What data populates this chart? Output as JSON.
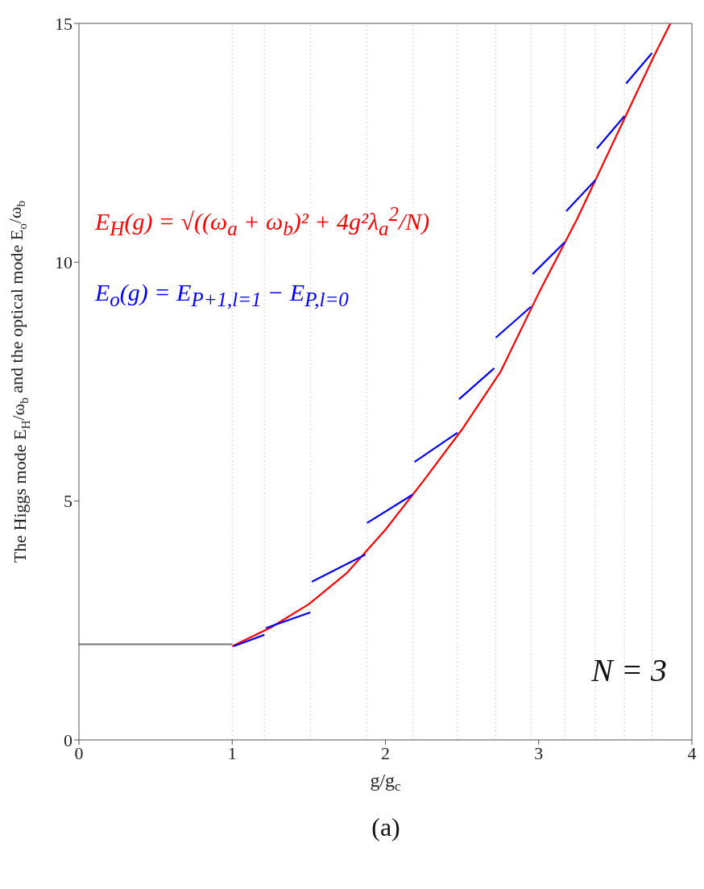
{
  "chart_data": {
    "type": "line",
    "xlabel": "g/g$_{c}$",
    "ylabel": "The Higgs mode E$_{H}$/ω$_{b}$ and the optical mode E$_{o}$/ω$_{b}$",
    "xlim": [
      0,
      4
    ],
    "ylim": [
      0,
      15
    ],
    "xticks": [
      0,
      1,
      2,
      3,
      4
    ],
    "yticks": [
      0,
      5,
      10,
      15
    ],
    "legend": "top left",
    "grid": false,
    "marker": "none",
    "series": [
      {
        "color": "#808080",
        "x": [
          0,
          1
        ],
        "values": [
          2,
          2
        ]
      },
      {
        "name": "E$_{H}$(g) = √((ω$_{a}$ + ω$_{b}$)² + 4g²λ$_{a}$$^{2}$/N)",
        "color": "#ff0000",
        "x": [
          1,
          1.25,
          1.5,
          1.75,
          2,
          2.25,
          2.5,
          2.75,
          3,
          3.25,
          3.5,
          3.75,
          3.86
        ],
        "values": [
          1.96,
          2.35,
          2.84,
          3.5,
          4.4,
          5.43,
          6.5,
          7.7,
          9.35,
          10.9,
          12.6,
          14.3,
          15
        ]
      },
      {
        "name": "E$_{o}$(g) = E$_{P+1,l=1}$ − E$_{P,l=0}$",
        "color": "#0000ff",
        "x": [
          1.01,
          1.21,
          1.215,
          1.22,
          1.51,
          1.515,
          1.52,
          1.87,
          1.875,
          1.88,
          2.18,
          2.185,
          2.19,
          2.47,
          2.475,
          2.48,
          2.71,
          2.715,
          2.72,
          2.95,
          2.955,
          2.96,
          3.17,
          3.175,
          3.18,
          3.37,
          3.375,
          3.38,
          3.56,
          3.565,
          3.57,
          3.74
        ],
        "values": [
          1.96,
          2.2,
          null,
          2.34,
          2.67,
          null,
          3.31,
          3.88,
          null,
          4.54,
          5.14,
          null,
          5.82,
          6.43,
          null,
          7.13,
          7.78,
          null,
          8.42,
          9.07,
          null,
          9.75,
          10.42,
          null,
          11.07,
          11.72,
          null,
          12.38,
          13.06,
          null,
          13.74,
          14.38
        ]
      }
    ],
    "ref_lines": [
      {
        "axis": "x",
        "value": 1,
        "color": "#d0d0d0",
        "line_style": "dotted"
      },
      {
        "axis": "x",
        "value": 1.21,
        "color": "#d0d0d0",
        "line_style": "dotted"
      },
      {
        "axis": "x",
        "value": 1.51,
        "color": "#d0d0d0",
        "line_style": "dotted"
      },
      {
        "axis": "x",
        "value": 1.88,
        "color": "#d0d0d0",
        "line_style": "dotted"
      },
      {
        "axis": "x",
        "value": 2.18,
        "color": "#d0d0d0",
        "line_style": "dotted"
      },
      {
        "axis": "x",
        "value": 2.47,
        "color": "#d0d0d0",
        "line_style": "dotted"
      },
      {
        "axis": "x",
        "value": 2.72,
        "color": "#d0d0d0",
        "line_style": "dotted"
      },
      {
        "axis": "x",
        "value": 2.95,
        "color": "#d0d0d0",
        "line_style": "dotted"
      },
      {
        "axis": "x",
        "value": 3.17,
        "color": "#d0d0d0",
        "line_style": "dotted"
      },
      {
        "axis": "x",
        "value": 3.37,
        "color": "#d0d0d0",
        "line_style": "dotted"
      },
      {
        "axis": "x",
        "value": 3.56,
        "color": "#d0d0d0",
        "line_style": "dotted"
      },
      {
        "axis": "x",
        "value": 3.74,
        "color": "#d0d0d0",
        "line_style": "dotted"
      }
    ],
    "annotations": [
      "N = 3",
      "(a)"
    ]
  }
}
